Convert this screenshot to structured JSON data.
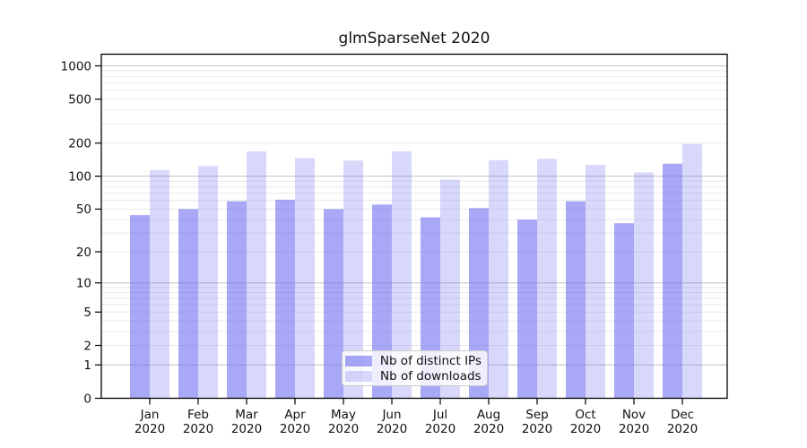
{
  "window": {
    "background": "#ffffff"
  },
  "chart_data": {
    "type": "bar",
    "title": "glmSparseNet 2020",
    "categories": [
      "Jan",
      "Feb",
      "Mar",
      "Apr",
      "May",
      "Jun",
      "Jul",
      "Aug",
      "Sep",
      "Oct",
      "Nov",
      "Dec"
    ],
    "category_sublabel": "2020",
    "series": [
      {
        "name": "Nb of distinct IPs",
        "color": "#6e6ef0",
        "alpha": 0.6,
        "values": [
          44,
          50,
          59,
          61,
          50,
          55,
          42,
          51,
          40,
          59,
          37,
          130
        ]
      },
      {
        "name": "Nb of downloads",
        "color": "#6e6ef0",
        "alpha": 0.27,
        "values": [
          114,
          124,
          168,
          146,
          139,
          168,
          93,
          140,
          144,
          127,
          108,
          196
        ]
      }
    ],
    "yscale": "log1p",
    "yticks": [
      0,
      1,
      2,
      5,
      10,
      20,
      50,
      100,
      200,
      500,
      1000
    ],
    "ylim": [
      0,
      1275
    ],
    "xlabel": "",
    "ylabel": "",
    "grid": {
      "on": true,
      "majors": [
        1,
        10,
        100,
        1000
      ],
      "major_color": "#c0c0c0",
      "minor_color": "#e9e9e9"
    },
    "legend": {
      "position": "lower-center"
    },
    "axis_color": "#000000",
    "text_color": "#111111"
  }
}
